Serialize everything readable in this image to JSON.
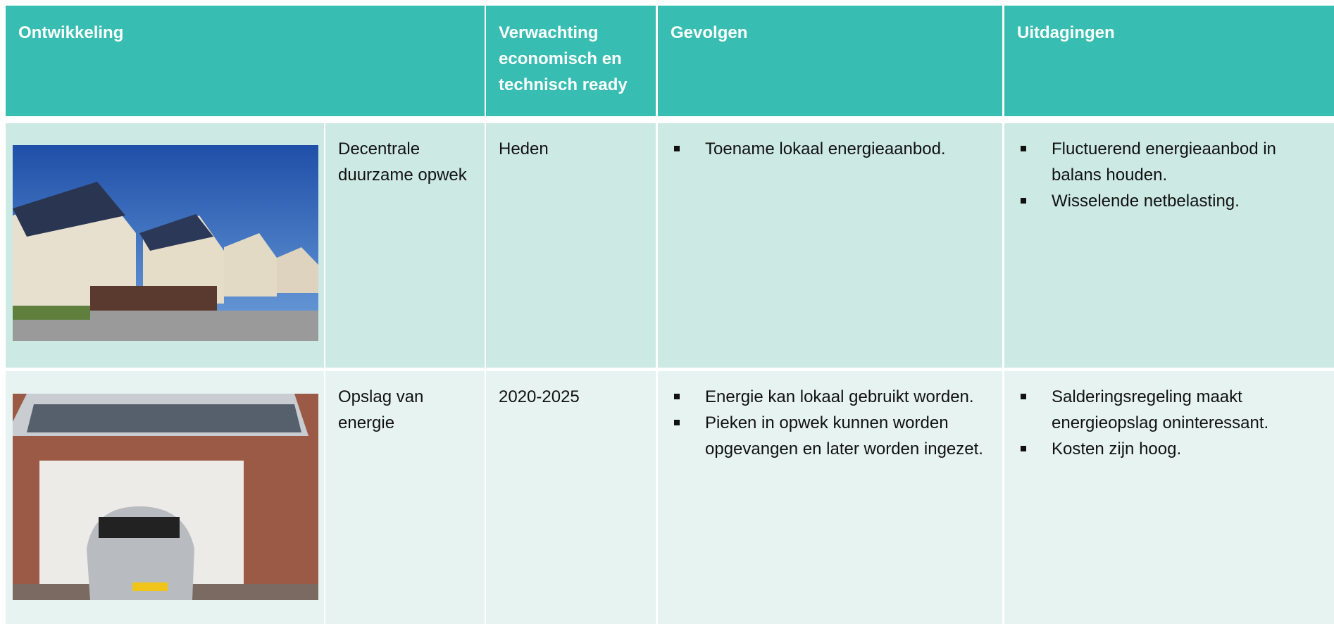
{
  "header": [
    "Ontwikkeling",
    "Verwachting economisch en technisch ready",
    "Gevolgen",
    "Uitdagingen"
  ],
  "rows": [
    {
      "name": "Decentrale duurzame opwek",
      "expectation": "Heden",
      "consequences": [
        "Toename lokaal energieaanbod."
      ],
      "challenges": [
        "Fluctuerend energieaanbod in balans houden.",
        "Wisselende netbelasting."
      ]
    },
    {
      "name": "Opslag van energie",
      "expectation": "2020-2025",
      "consequences": [
        "Energie kan lokaal gebruikt worden.",
        "Pieken in opwek kunnen worden opgevangen en later worden ingezet."
      ],
      "challenges": [
        "Salderingsregeling maakt energieopslag oninteressant.",
        "Kosten zijn hoog."
      ]
    }
  ]
}
